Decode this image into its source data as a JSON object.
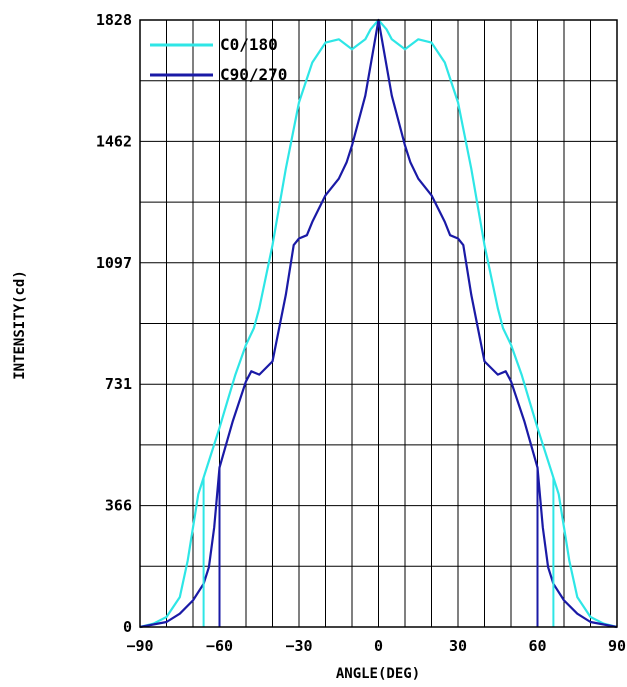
{
  "chart_data": {
    "type": "line",
    "title": "",
    "xlabel": "ANGLE(DEG)",
    "ylabel": "INTENSITY(cd)",
    "xlim": [
      -90,
      90
    ],
    "ylim": [
      0,
      1828
    ],
    "grid": true,
    "legend_position": "top-left",
    "x_tick_labels": [
      "-90",
      "-60",
      "-30",
      "0",
      "30",
      "60",
      "90"
    ],
    "y_tick_labels": [
      "0",
      "366",
      "731",
      "1097",
      "1462",
      "1828"
    ],
    "series": [
      {
        "name": "C0/180",
        "color": "#2ee6e6",
        "x": [
          -90,
          -85,
          -80,
          -75,
          -72,
          -70,
          -68,
          -66,
          -64,
          -62,
          -60,
          -57,
          -54,
          -50,
          -47,
          -45,
          -40,
          -35,
          -30,
          -25,
          -20,
          -15,
          -10,
          -5,
          -3,
          0,
          3,
          5,
          10,
          15,
          20,
          25,
          30,
          35,
          40,
          45,
          47,
          50,
          54,
          57,
          60,
          62,
          64,
          66,
          68,
          70,
          72,
          75,
          80,
          85,
          90
        ],
        "y": [
          0,
          10,
          30,
          90,
          200,
          300,
          400,
          450,
          500,
          550,
          600,
          680,
          760,
          850,
          900,
          960,
          1150,
          1380,
          1580,
          1700,
          1760,
          1770,
          1740,
          1770,
          1800,
          1828,
          1800,
          1770,
          1740,
          1770,
          1760,
          1700,
          1580,
          1380,
          1150,
          960,
          900,
          850,
          760,
          680,
          600,
          550,
          500,
          450,
          400,
          300,
          200,
          90,
          30,
          10,
          0
        ]
      },
      {
        "name": "C90/270",
        "color": "#1a1aa6",
        "x": [
          -90,
          -80,
          -75,
          -70,
          -66,
          -64,
          -62,
          -60,
          -55,
          -50,
          -48,
          -45,
          -40,
          -35,
          -32,
          -30,
          -27,
          -25,
          -20,
          -15,
          -12,
          -10,
          -5,
          0,
          5,
          10,
          12,
          15,
          20,
          25,
          27,
          30,
          32,
          35,
          40,
          45,
          48,
          50,
          55,
          60,
          62,
          64,
          66,
          70,
          75,
          80,
          90
        ],
        "y": [
          0,
          15,
          40,
          80,
          130,
          180,
          300,
          480,
          620,
          740,
          770,
          760,
          800,
          1000,
          1150,
          1170,
          1180,
          1220,
          1300,
          1350,
          1400,
          1450,
          1600,
          1828,
          1600,
          1450,
          1400,
          1350,
          1300,
          1220,
          1180,
          1170,
          1150,
          1000,
          800,
          760,
          770,
          740,
          620,
          480,
          300,
          180,
          130,
          80,
          40,
          15,
          0
        ]
      }
    ],
    "vertical_markers": [
      {
        "x": -66,
        "series": "C0/180"
      },
      {
        "x": 66,
        "series": "C0/180"
      },
      {
        "x": -60,
        "series": "C90/270"
      },
      {
        "x": 60,
        "series": "C90/270"
      }
    ]
  }
}
